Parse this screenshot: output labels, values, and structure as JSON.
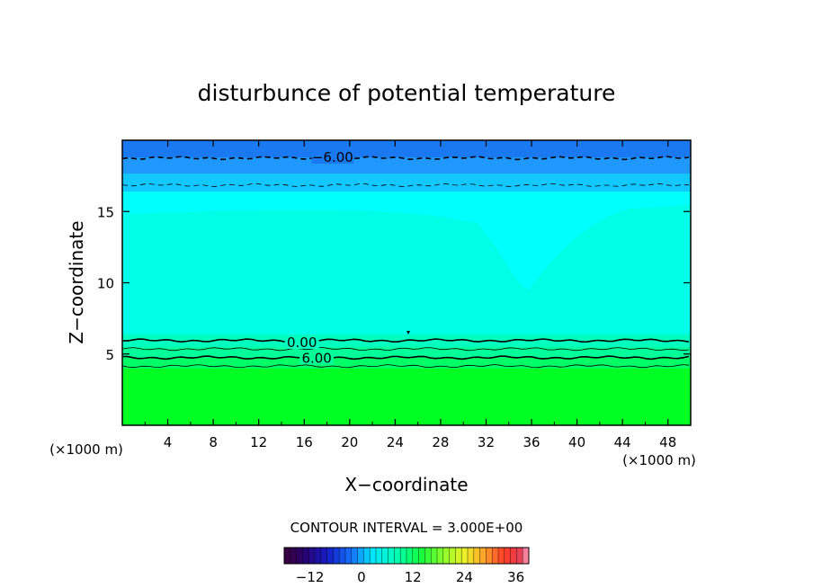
{
  "chart_data": {
    "type": "contour",
    "title": "disturbunce of potential temperature",
    "xlabel": "X−coordinate",
    "ylabel": "Z−coordinate",
    "x_unit_left": "(×1000 m)",
    "x_unit_right": "(×1000 m)",
    "xlim": [
      0,
      50
    ],
    "ylim": [
      0,
      20
    ],
    "x_ticks": [
      4,
      8,
      12,
      16,
      20,
      24,
      28,
      32,
      36,
      40,
      44,
      48
    ],
    "x_tick_labels": [
      "4",
      "8",
      "12",
      "16",
      "20",
      "24",
      "28",
      "32",
      "36",
      "40",
      "44",
      "48"
    ],
    "y_ticks": [
      5,
      10,
      15
    ],
    "y_tick_labels": [
      "5",
      "10",
      "15"
    ],
    "contour_interval_text": "CONTOUR INTERVAL = 3.000E+00",
    "contour_labels": [
      {
        "text": "−6.00",
        "x": 18.5,
        "y": 18.8
      },
      {
        "text": "0.00",
        "x": 15.8,
        "y": 5.8
      },
      {
        "text": "6.00",
        "x": 17.1,
        "y": 4.7
      }
    ],
    "contour_lines": [
      {
        "level": -6,
        "z": 18.75,
        "dashed": true,
        "bold": true
      },
      {
        "level": -3,
        "z": 16.85,
        "dashed": true,
        "bold": false
      },
      {
        "level": 0,
        "z": 5.95,
        "dashed": false,
        "bold": true
      },
      {
        "level": 3,
        "z": 5.35,
        "dashed": false,
        "bold": false
      },
      {
        "level": 6,
        "z": 4.75,
        "dashed": false,
        "bold": true
      },
      {
        "level": 9,
        "z": 4.15,
        "dashed": false,
        "bold": false
      }
    ],
    "colorbar": {
      "min": -18,
      "max": 39,
      "tick_values": [
        -12,
        0,
        12,
        24,
        36
      ],
      "tick_labels": [
        "−12",
        "0",
        "12",
        "24",
        "36"
      ]
    },
    "colors": {
      "top_band": "#1a78f0",
      "upper_blue": "#1fa0ff",
      "cyan": "#00ffff",
      "aqua": "#00ffdd",
      "green_transition": "#00ff99",
      "green": "#00ff22"
    }
  }
}
